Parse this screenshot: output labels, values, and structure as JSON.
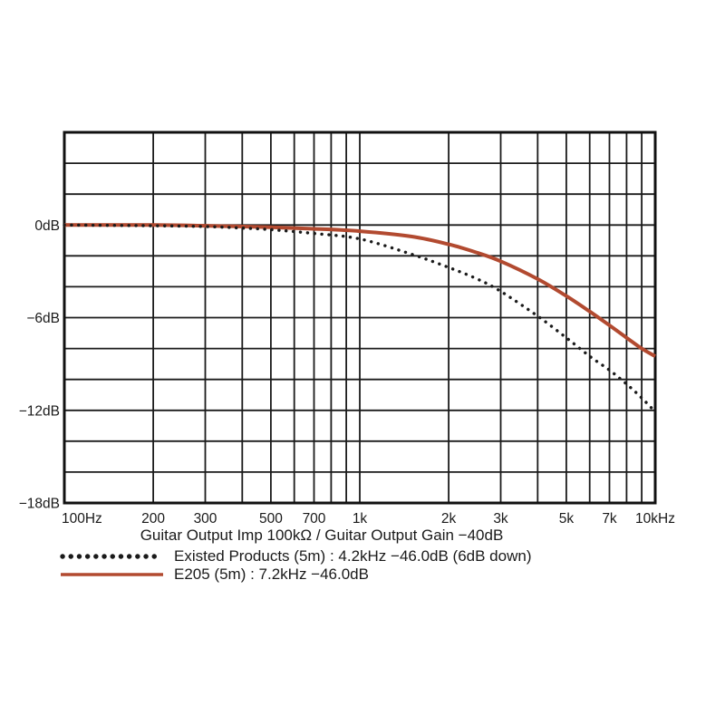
{
  "page": {
    "background": "#ffffff"
  },
  "chart_data": {
    "type": "line",
    "title": "",
    "xlabel": "Guitar Output Imp 100kΩ / Guitar Output Gain −40dB",
    "ylabel": "dB",
    "x_scale": "log",
    "x_range": [
      100,
      10000
    ],
    "y_range": [
      -18,
      6
    ],
    "y_grid_step": 2,
    "grid": true,
    "legend_position": "below",
    "grid_color": "#1b1b1b",
    "border_color": "#111111",
    "text_color": "#1a1a1a",
    "x_ticks": [
      {
        "f": 100,
        "label": "100Hz"
      },
      {
        "f": 200,
        "label": "200"
      },
      {
        "f": 300,
        "label": "300"
      },
      {
        "f": 500,
        "label": "500"
      },
      {
        "f": 700,
        "label": "700"
      },
      {
        "f": 1000,
        "label": "1k"
      },
      {
        "f": 2000,
        "label": "2k"
      },
      {
        "f": 3000,
        "label": "3k"
      },
      {
        "f": 5000,
        "label": "5k"
      },
      {
        "f": 7000,
        "label": "7k"
      },
      {
        "f": 10000,
        "label": "10kHz"
      }
    ],
    "y_ticks": [
      {
        "v": 0,
        "label": "0dB"
      },
      {
        "v": -6,
        "label": "−6dB"
      },
      {
        "v": -12,
        "label": "−12dB"
      },
      {
        "v": -18,
        "label": "−18dB"
      }
    ],
    "series": [
      {
        "name": "Existed Products (5m) : 4.2kHz −46.0dB (6dB down)",
        "style": "dotted",
        "color": "#1a1a1a",
        "points": [
          [
            100,
            0
          ],
          [
            200,
            -0.05
          ],
          [
            300,
            -0.1
          ],
          [
            400,
            -0.2
          ],
          [
            500,
            -0.3
          ],
          [
            700,
            -0.55
          ],
          [
            1000,
            -0.9
          ],
          [
            1500,
            -1.9
          ],
          [
            2000,
            -2.75
          ],
          [
            2500,
            -3.5
          ],
          [
            3000,
            -4.3
          ],
          [
            4000,
            -5.9
          ],
          [
            5000,
            -7.3
          ],
          [
            6000,
            -8.5
          ],
          [
            7000,
            -9.4
          ],
          [
            8000,
            -10.3
          ],
          [
            9000,
            -11.2
          ],
          [
            10000,
            -12.1
          ]
        ]
      },
      {
        "name": "E205 (5m) : 7.2kHz −46.0dB",
        "style": "solid",
        "color": "#b24a30",
        "points": [
          [
            100,
            0
          ],
          [
            200,
            0
          ],
          [
            300,
            -0.05
          ],
          [
            500,
            -0.15
          ],
          [
            700,
            -0.25
          ],
          [
            1000,
            -0.4
          ],
          [
            1500,
            -0.75
          ],
          [
            2000,
            -1.25
          ],
          [
            2500,
            -1.8
          ],
          [
            3000,
            -2.35
          ],
          [
            4000,
            -3.5
          ],
          [
            5000,
            -4.6
          ],
          [
            6000,
            -5.6
          ],
          [
            7000,
            -6.5
          ],
          [
            8000,
            -7.3
          ],
          [
            9000,
            -8.0
          ],
          [
            10000,
            -8.5
          ]
        ]
      }
    ]
  }
}
